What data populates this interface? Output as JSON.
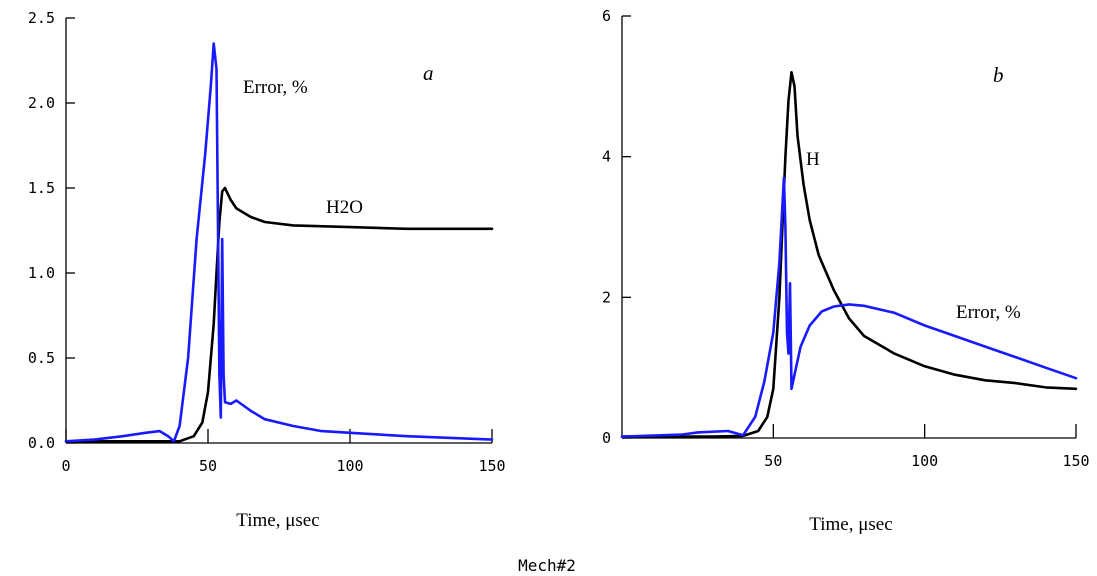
{
  "caption": "Mech#2",
  "colors": {
    "black_series": "#000000",
    "blue_series": "#1a1aff"
  },
  "chart_data": [
    {
      "type": "line",
      "panel_label": "a",
      "xlabel": "Time,  μsec",
      "ylabel": "",
      "xlim": [
        0,
        150
      ],
      "ylim": [
        0,
        2.5
      ],
      "xticks": [
        0,
        50,
        100,
        150
      ],
      "xtick_labels": [
        "0",
        "50",
        "100",
        "150"
      ],
      "yticks": [
        0,
        0.5,
        1.0,
        1.5,
        2.0,
        2.5
      ],
      "ytick_labels": [
        "0.0",
        "0.5",
        "1.0",
        "1.5",
        "2.0",
        "2.5"
      ],
      "grid": false,
      "series": [
        {
          "name": "H2O",
          "color": "#000000",
          "points": [
            [
              0,
              0.01
            ],
            [
              30,
              0.01
            ],
            [
              40,
              0.01
            ],
            [
              45,
              0.04
            ],
            [
              48,
              0.12
            ],
            [
              50,
              0.3
            ],
            [
              52,
              0.7
            ],
            [
              53,
              1.0
            ],
            [
              54,
              1.3
            ],
            [
              55,
              1.48
            ],
            [
              56,
              1.5
            ],
            [
              58,
              1.43
            ],
            [
              60,
              1.38
            ],
            [
              65,
              1.33
            ],
            [
              70,
              1.3
            ],
            [
              80,
              1.28
            ],
            [
              100,
              1.27
            ],
            [
              120,
              1.26
            ],
            [
              150,
              1.26
            ]
          ]
        },
        {
          "name": "Error, %",
          "color": "#1a1aff",
          "points": [
            [
              0,
              0.01
            ],
            [
              10,
              0.02
            ],
            [
              20,
              0.04
            ],
            [
              28,
              0.06
            ],
            [
              33,
              0.07
            ],
            [
              36,
              0.04
            ],
            [
              38,
              0.01
            ],
            [
              40,
              0.1
            ],
            [
              43,
              0.5
            ],
            [
              46,
              1.2
            ],
            [
              49,
              1.7
            ],
            [
              51,
              2.1
            ],
            [
              52,
              2.35
            ],
            [
              53,
              2.2
            ],
            [
              54,
              0.4
            ],
            [
              54.5,
              0.15
            ],
            [
              55,
              1.2
            ],
            [
              55.5,
              0.4
            ],
            [
              56,
              0.24
            ],
            [
              58,
              0.23
            ],
            [
              60,
              0.25
            ],
            [
              65,
              0.19
            ],
            [
              70,
              0.14
            ],
            [
              80,
              0.1
            ],
            [
              90,
              0.07
            ],
            [
              100,
              0.06
            ],
            [
              120,
              0.04
            ],
            [
              150,
              0.02
            ]
          ]
        }
      ],
      "annotations": [
        "Error, %",
        "H2O"
      ]
    },
    {
      "type": "line",
      "panel_label": "b",
      "xlabel": "Time,  μsec",
      "ylabel": "",
      "xlim": [
        0,
        150
      ],
      "ylim": [
        0,
        6
      ],
      "xticks": [
        50,
        100,
        150
      ],
      "xtick_labels": [
        "50",
        "100",
        "150"
      ],
      "yticks": [
        0,
        2,
        4,
        6
      ],
      "ytick_labels": [
        "0",
        "2",
        "4",
        "6"
      ],
      "grid": false,
      "series": [
        {
          "name": "H",
          "color": "#000000",
          "points": [
            [
              0,
              0.02
            ],
            [
              30,
              0.02
            ],
            [
              40,
              0.03
            ],
            [
              45,
              0.1
            ],
            [
              48,
              0.3
            ],
            [
              50,
              0.7
            ],
            [
              52,
              2.0
            ],
            [
              54,
              4.0
            ],
            [
              55,
              4.8
            ],
            [
              56,
              5.2
            ],
            [
              57,
              5.0
            ],
            [
              58,
              4.3
            ],
            [
              60,
              3.6
            ],
            [
              62,
              3.1
            ],
            [
              65,
              2.6
            ],
            [
              70,
              2.1
            ],
            [
              75,
              1.7
            ],
            [
              80,
              1.45
            ],
            [
              90,
              1.2
            ],
            [
              100,
              1.02
            ],
            [
              110,
              0.9
            ],
            [
              120,
              0.82
            ],
            [
              130,
              0.78
            ],
            [
              140,
              0.72
            ],
            [
              150,
              0.7
            ]
          ]
        },
        {
          "name": "Error, %",
          "color": "#1a1aff",
          "points": [
            [
              0,
              0.02
            ],
            [
              20,
              0.05
            ],
            [
              25,
              0.08
            ],
            [
              35,
              0.1
            ],
            [
              40,
              0.04
            ],
            [
              44,
              0.3
            ],
            [
              47,
              0.8
            ],
            [
              50,
              1.5
            ],
            [
              52,
              2.5
            ],
            [
              53,
              3.3
            ],
            [
              53.5,
              3.7
            ],
            [
              54,
              3.0
            ],
            [
              54.5,
              1.5
            ],
            [
              55,
              1.2
            ],
            [
              55.5,
              2.2
            ],
            [
              56,
              0.7
            ],
            [
              57,
              0.9
            ],
            [
              59,
              1.3
            ],
            [
              62,
              1.6
            ],
            [
              66,
              1.8
            ],
            [
              70,
              1.87
            ],
            [
              75,
              1.9
            ],
            [
              80,
              1.88
            ],
            [
              90,
              1.78
            ],
            [
              100,
              1.6
            ],
            [
              110,
              1.45
            ],
            [
              120,
              1.3
            ],
            [
              130,
              1.15
            ],
            [
              140,
              1.0
            ],
            [
              150,
              0.85
            ]
          ]
        }
      ],
      "annotations": [
        "H",
        "Error, %"
      ]
    }
  ]
}
